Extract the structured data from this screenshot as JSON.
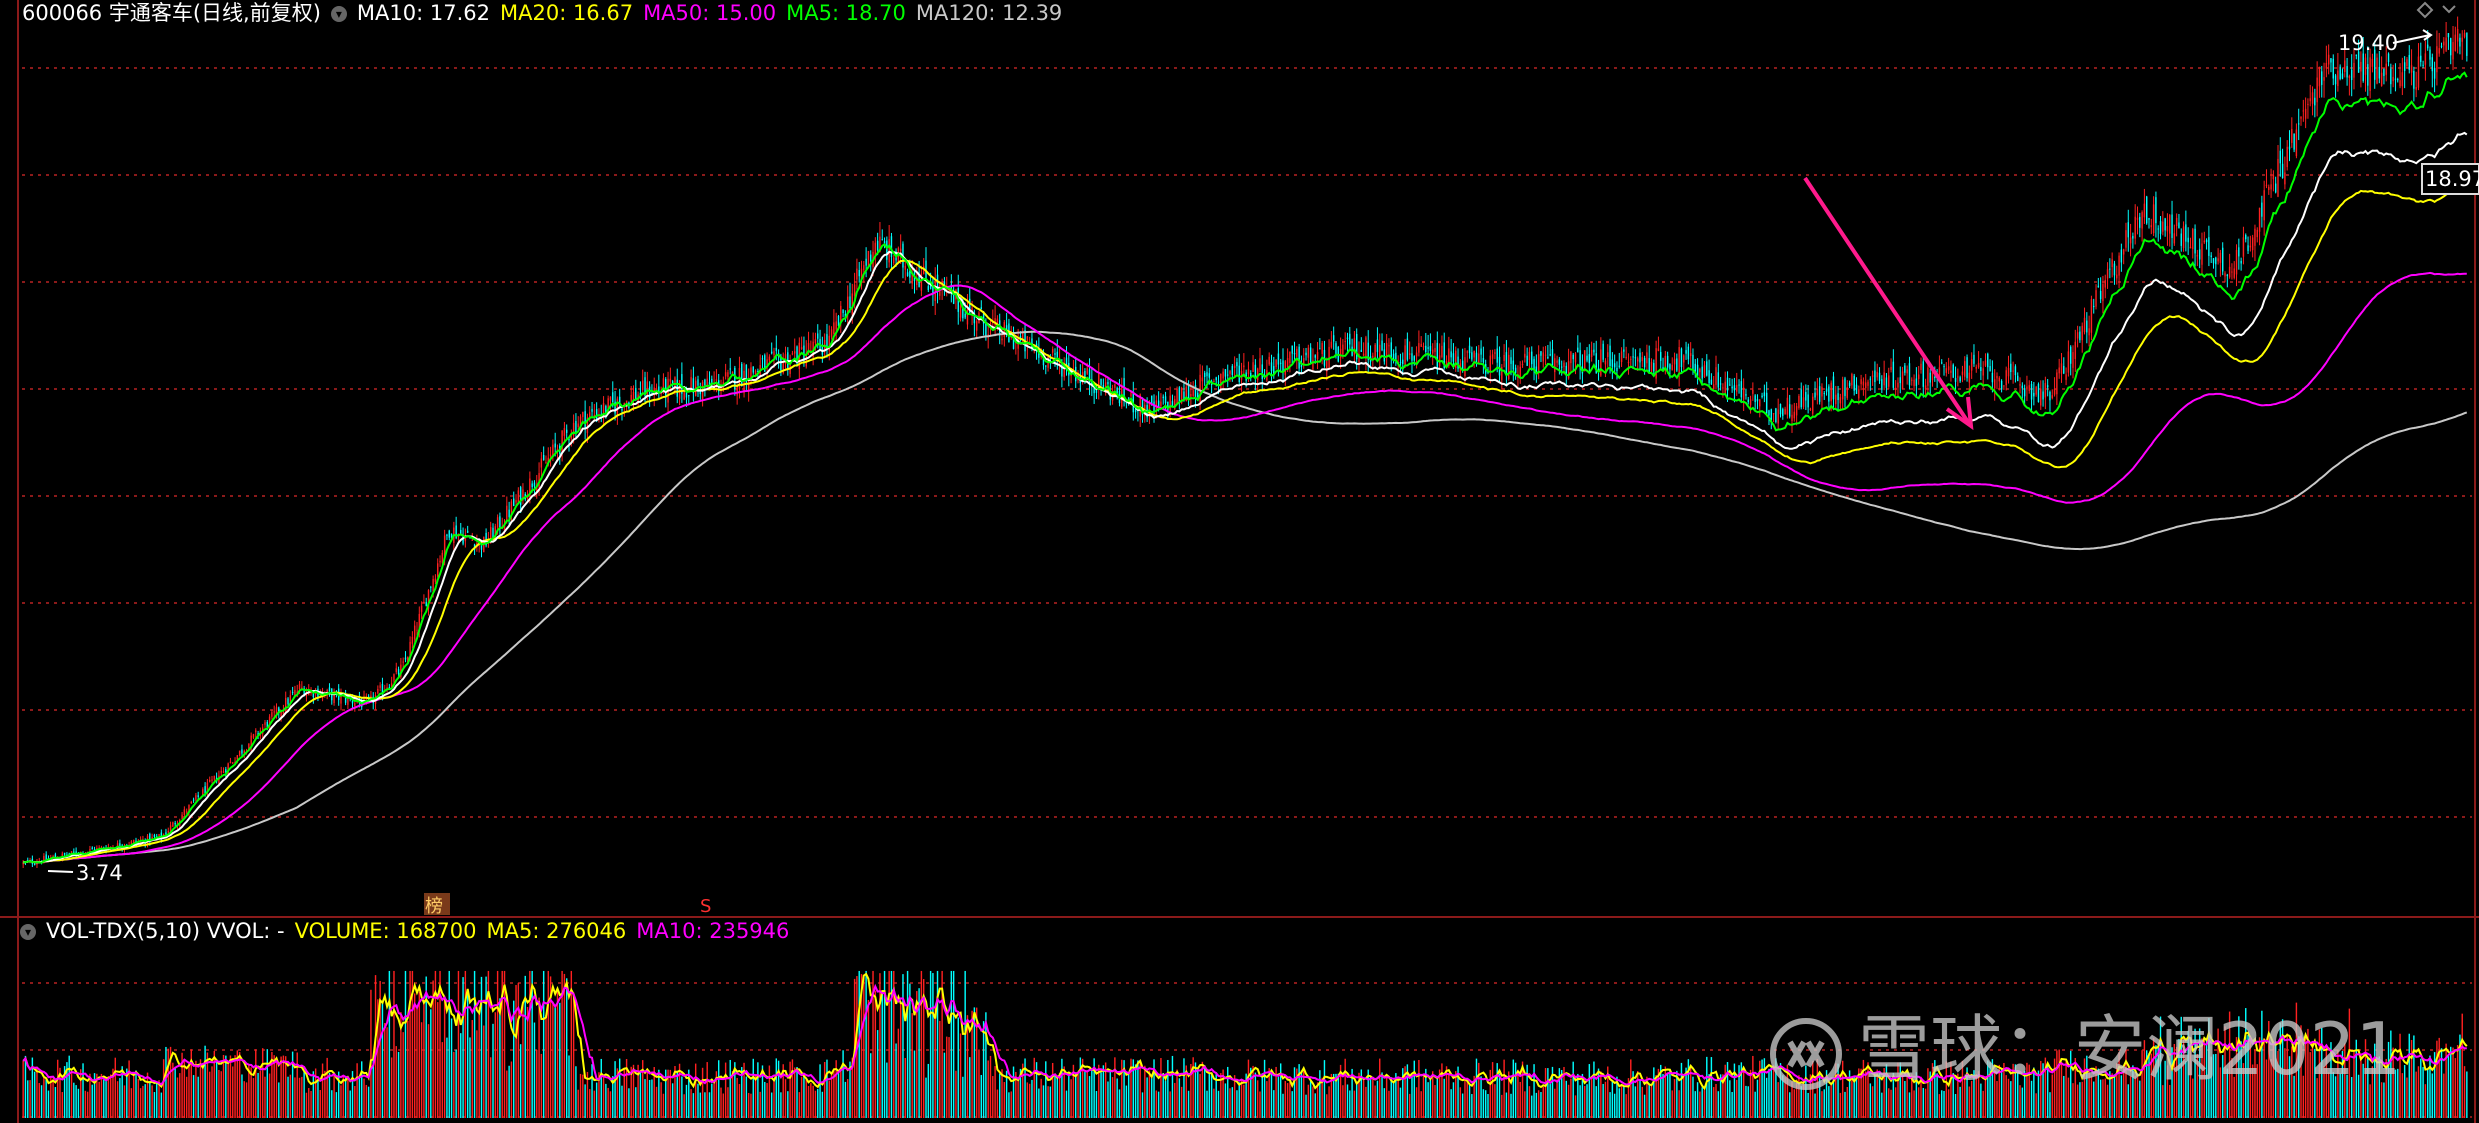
{
  "price_panel": {
    "code_title": "600066 宇通客车(日线,前复权)",
    "ma_labels": [
      {
        "text": "MA10: 17.62",
        "color": "#ffffff"
      },
      {
        "text": "MA20: 16.67",
        "color": "#ffff00"
      },
      {
        "text": "MA50: 15.00",
        "color": "#ff00ff"
      },
      {
        "text": "MA5: 18.70",
        "color": "#00ff00"
      },
      {
        "text": "MA120: 12.39",
        "color": "#c8c8c8"
      }
    ],
    "high_label": "19.40",
    "right_label": "18.97",
    "low_label": "3.74",
    "marker_bang": "榜",
    "marker_s": "S"
  },
  "volume_panel": {
    "title": "VOL-TDX(5,10) VVOL: -",
    "labels": [
      {
        "text": "VOLUME: 168700",
        "color": "#ffff00"
      },
      {
        "text": "MA5: 276046",
        "color": "#ffff00"
      },
      {
        "text": "MA10: 235946",
        "color": "#ff00ff"
      }
    ]
  },
  "watermark": {
    "text": "雪球：安澜2021"
  },
  "colors": {
    "up": "#ff2020",
    "down": "#00ffff",
    "ma5": "#00ff00",
    "ma10": "#ffffff",
    "ma20": "#ffff00",
    "ma50": "#ff00ff",
    "ma120": "#c8c8c8",
    "arrow": "#ff1a8c",
    "grid": "#8b1a1a"
  },
  "chart_data": {
    "type": "candlestick",
    "period": "daily",
    "adjusted": "forward",
    "price_range": [
      3.74,
      19.4
    ],
    "current_ma": {
      "MA5": 18.7,
      "MA10": 17.62,
      "MA20": 16.67,
      "MA50": 15.0,
      "MA120": 12.39
    },
    "price_path": [
      [
        0,
        3.9
      ],
      [
        60,
        4.4
      ],
      [
        90,
        5.8
      ],
      [
        120,
        7.2
      ],
      [
        150,
        6.9
      ],
      [
        165,
        7.6
      ],
      [
        185,
        10.2
      ],
      [
        200,
        9.9
      ],
      [
        240,
        12.2
      ],
      [
        270,
        12.8
      ],
      [
        300,
        12.9
      ],
      [
        350,
        13.7
      ],
      [
        370,
        15.6
      ],
      [
        420,
        14.0
      ],
      [
        490,
        12.4
      ],
      [
        520,
        13.1
      ],
      [
        580,
        13.6
      ],
      [
        640,
        13.3
      ],
      [
        720,
        13.4
      ],
      [
        760,
        12.4
      ],
      [
        800,
        13.0
      ],
      [
        850,
        13.2
      ],
      [
        880,
        12.7
      ],
      [
        920,
        16.2
      ],
      [
        960,
        15.1
      ],
      [
        1000,
        18.9
      ],
      [
        1040,
        18.8
      ],
      [
        1061,
        19.4
      ]
    ],
    "ma_end": {
      "MA5": 18.7,
      "MA10": 17.62,
      "MA20": 16.67,
      "MA50": 15.0,
      "MA120": 12.39
    },
    "volume": {
      "latest": 168700,
      "ma5": 276046,
      "ma10": 235946
    }
  }
}
